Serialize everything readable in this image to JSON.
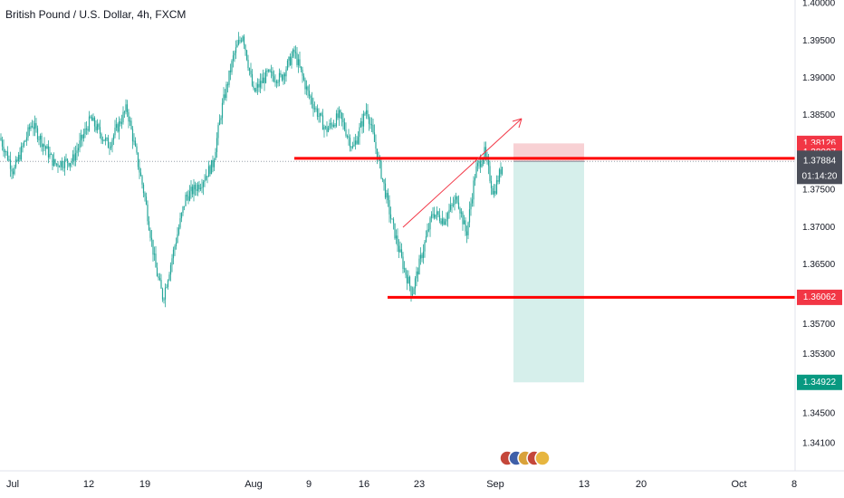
{
  "header": {
    "symbol_title": "British Pound / U.S. Dollar, 4h, FXCM"
  },
  "colors": {
    "up": "#26a69a",
    "down": "#26a69a",
    "resistance_line": "#ff0000",
    "trend_arrow": "#f23645",
    "stop_zone": "#f7c9cd",
    "target_zone": "#d2ede9",
    "axis_text": "#131722",
    "red_badge": "#f23645",
    "dark_badge": "#4b4e59",
    "target_badge": "#089981"
  },
  "chart_data": {
    "type": "candlestick",
    "symbol": "GBPUSD",
    "timeframe": "4h",
    "source": "FXCM",
    "y_axis": {
      "range": [
        1.339,
        1.4
      ],
      "tick_labels": [
        "1.40000",
        "1.39500",
        "1.39000",
        "1.38500",
        "1.37500",
        "1.37000",
        "1.36500",
        "1.35700",
        "1.35300",
        "1.34500",
        "1.34100"
      ]
    },
    "x_axis": {
      "tick_labels": [
        "Jul",
        "12",
        "19",
        "Aug",
        "9",
        "16",
        "23",
        "Sep",
        "13",
        "20",
        "Oct",
        "8"
      ]
    },
    "price_path": [
      [
        0,
        1.382
      ],
      [
        15,
        1.3775
      ],
      [
        35,
        1.384
      ],
      [
        60,
        1.3785
      ],
      [
        80,
        1.379
      ],
      [
        100,
        1.3845
      ],
      [
        120,
        1.381
      ],
      [
        140,
        1.386
      ],
      [
        160,
        1.374
      ],
      [
        172,
        1.3645
      ],
      [
        180,
        1.3605
      ],
      [
        192,
        1.367
      ],
      [
        205,
        1.374
      ],
      [
        222,
        1.376
      ],
      [
        235,
        1.3785
      ],
      [
        245,
        1.386
      ],
      [
        258,
        1.393
      ],
      [
        268,
        1.396
      ],
      [
        280,
        1.388
      ],
      [
        295,
        1.3905
      ],
      [
        310,
        1.39
      ],
      [
        325,
        1.3935
      ],
      [
        340,
        1.388
      ],
      [
        360,
        1.383
      ],
      [
        375,
        1.385
      ],
      [
        390,
        1.3805
      ],
      [
        405,
        1.386
      ],
      [
        418,
        1.379
      ],
      [
        432,
        1.371
      ],
      [
        445,
        1.365
      ],
      [
        455,
        1.3612
      ],
      [
        465,
        1.366
      ],
      [
        478,
        1.372
      ],
      [
        490,
        1.371
      ],
      [
        505,
        1.374
      ],
      [
        515,
        1.369
      ],
      [
        525,
        1.3775
      ],
      [
        535,
        1.38
      ],
      [
        545,
        1.3745
      ],
      [
        555,
        1.3785
      ]
    ],
    "horizontal_levels": [
      {
        "price": 1.37926,
        "label": "1.37926"
      },
      {
        "price": 1.36062,
        "label": "1.36062"
      }
    ],
    "position": {
      "side": "short",
      "entry": 1.37884,
      "stop": 1.38126,
      "target": 1.34922
    },
    "price_labels": {
      "stop": "1.38126",
      "level_high": "1.38007",
      "level_resistance": "1.37926",
      "last_price": "1.37884",
      "countdown": "01:14:20",
      "level_support": "1.36062",
      "target": "1.34922"
    },
    "grid": false,
    "legend": "none"
  }
}
